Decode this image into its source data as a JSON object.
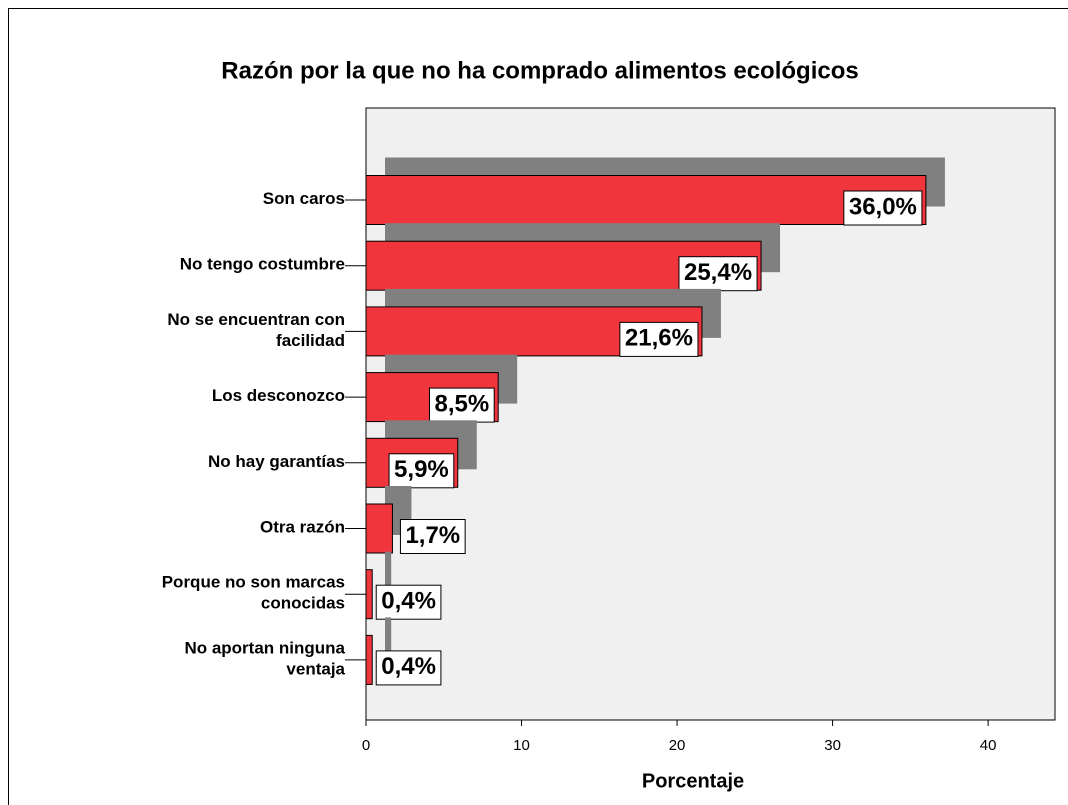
{
  "chart_data": {
    "type": "bar",
    "orientation": "horizontal",
    "title": "Razón por la que no ha comprado alimentos ecológicos",
    "x_label": "Porcentaje",
    "categories": [
      "Son caros",
      "No tengo costumbre",
      "No se encuentran con\nfacilidad",
      "Los desconozco",
      "No hay garantías",
      "Otra razón",
      "Porque no son marcas\nconocidas",
      "No aportan ninguna\nventaja"
    ],
    "values": [
      36.0,
      25.4,
      21.6,
      8.5,
      5.9,
      1.7,
      0.4,
      0.4
    ],
    "value_labels": [
      "36,0%",
      "25,4%",
      "21,6%",
      "8,5%",
      "5,9%",
      "1,7%",
      "0,4%",
      "0,4%"
    ],
    "color": "#f0353d",
    "shadow_color": "#808080",
    "xlim": [
      0,
      44.3
    ],
    "xticks": [
      0,
      10,
      20,
      30,
      40
    ]
  }
}
